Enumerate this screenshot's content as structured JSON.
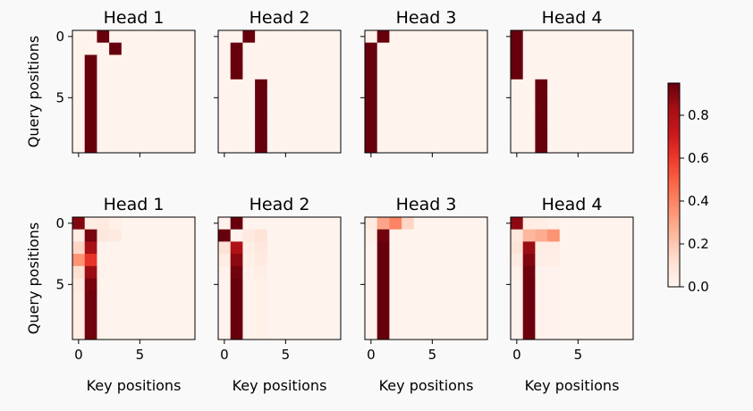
{
  "chart_data": {
    "type": "heatmap",
    "layout": "2x4 grid of attention heatmaps with shared colorbar",
    "xlabel": "Key positions",
    "ylabel": "Query positions",
    "x_ticks": [
      "0",
      "5"
    ],
    "y_ticks": [
      "0",
      "5"
    ],
    "colormap": "Reds",
    "value_range": [
      0,
      0.95
    ],
    "colorbar_ticks": [
      "0.0",
      "0.2",
      "0.4",
      "0.6",
      "0.8"
    ],
    "colorbar_tick_values": [
      0,
      0.2,
      0.4,
      0.6,
      0.8
    ],
    "rows": [
      [
        {
          "title": "Head 1",
          "matrix": [
            [
              0.01,
              0.01,
              0.95,
              0.01,
              0.01,
              0.01,
              0.01,
              0.01,
              0.01,
              0.01
            ],
            [
              0.01,
              0.01,
              0.01,
              0.95,
              0.01,
              0.01,
              0.01,
              0.01,
              0.01,
              0.01
            ],
            [
              0.01,
              0.95,
              0.01,
              0.01,
              0.01,
              0.01,
              0.01,
              0.01,
              0.01,
              0.01
            ],
            [
              0.01,
              0.95,
              0.01,
              0.01,
              0.01,
              0.01,
              0.01,
              0.01,
              0.01,
              0.01
            ],
            [
              0.01,
              0.95,
              0.01,
              0.01,
              0.01,
              0.01,
              0.01,
              0.01,
              0.01,
              0.01
            ],
            [
              0.01,
              0.95,
              0.01,
              0.01,
              0.01,
              0.01,
              0.01,
              0.01,
              0.01,
              0.01
            ],
            [
              0.01,
              0.95,
              0.01,
              0.01,
              0.01,
              0.01,
              0.01,
              0.01,
              0.01,
              0.01
            ],
            [
              0.01,
              0.95,
              0.01,
              0.01,
              0.01,
              0.01,
              0.01,
              0.01,
              0.01,
              0.01
            ],
            [
              0.01,
              0.95,
              0.01,
              0.01,
              0.01,
              0.01,
              0.01,
              0.01,
              0.01,
              0.01
            ],
            [
              0.01,
              0.95,
              0.01,
              0.01,
              0.01,
              0.01,
              0.01,
              0.01,
              0.01,
              0.01
            ]
          ]
        },
        {
          "title": "Head 2",
          "matrix": [
            [
              0.01,
              0.01,
              0.95,
              0.01,
              0.01,
              0.01,
              0.01,
              0.01,
              0.01,
              0.01
            ],
            [
              0.01,
              0.95,
              0.01,
              0.01,
              0.01,
              0.01,
              0.01,
              0.01,
              0.01,
              0.01
            ],
            [
              0.01,
              0.95,
              0.01,
              0.01,
              0.01,
              0.01,
              0.01,
              0.01,
              0.01,
              0.01
            ],
            [
              0.01,
              0.95,
              0.01,
              0.01,
              0.01,
              0.01,
              0.01,
              0.01,
              0.01,
              0.01
            ],
            [
              0.01,
              0.01,
              0.01,
              0.95,
              0.01,
              0.01,
              0.01,
              0.01,
              0.01,
              0.01
            ],
            [
              0.01,
              0.01,
              0.01,
              0.95,
              0.01,
              0.01,
              0.01,
              0.01,
              0.01,
              0.01
            ],
            [
              0.01,
              0.01,
              0.01,
              0.95,
              0.01,
              0.01,
              0.01,
              0.01,
              0.01,
              0.01
            ],
            [
              0.01,
              0.01,
              0.01,
              0.95,
              0.01,
              0.01,
              0.01,
              0.01,
              0.01,
              0.01
            ],
            [
              0.01,
              0.01,
              0.01,
              0.95,
              0.01,
              0.01,
              0.01,
              0.01,
              0.01,
              0.01
            ],
            [
              0.01,
              0.01,
              0.01,
              0.95,
              0.01,
              0.01,
              0.01,
              0.01,
              0.01,
              0.01
            ]
          ]
        },
        {
          "title": "Head 3",
          "matrix": [
            [
              0.01,
              0.95,
              0.01,
              0.01,
              0.01,
              0.01,
              0.01,
              0.01,
              0.01,
              0.01
            ],
            [
              0.95,
              0.01,
              0.01,
              0.01,
              0.01,
              0.01,
              0.01,
              0.01,
              0.01,
              0.01
            ],
            [
              0.95,
              0.01,
              0.01,
              0.01,
              0.01,
              0.01,
              0.01,
              0.01,
              0.01,
              0.01
            ],
            [
              0.95,
              0.01,
              0.01,
              0.01,
              0.01,
              0.01,
              0.01,
              0.01,
              0.01,
              0.01
            ],
            [
              0.95,
              0.01,
              0.01,
              0.01,
              0.01,
              0.01,
              0.01,
              0.01,
              0.01,
              0.01
            ],
            [
              0.95,
              0.01,
              0.01,
              0.01,
              0.01,
              0.01,
              0.01,
              0.01,
              0.01,
              0.01
            ],
            [
              0.95,
              0.01,
              0.01,
              0.01,
              0.01,
              0.01,
              0.01,
              0.01,
              0.01,
              0.01
            ],
            [
              0.95,
              0.01,
              0.01,
              0.01,
              0.01,
              0.01,
              0.01,
              0.01,
              0.01,
              0.01
            ],
            [
              0.95,
              0.01,
              0.01,
              0.01,
              0.01,
              0.01,
              0.01,
              0.01,
              0.01,
              0.01
            ],
            [
              0.95,
              0.01,
              0.01,
              0.01,
              0.01,
              0.01,
              0.01,
              0.01,
              0.01,
              0.01
            ]
          ]
        },
        {
          "title": "Head 4",
          "matrix": [
            [
              0.95,
              0.01,
              0.01,
              0.01,
              0.01,
              0.01,
              0.01,
              0.01,
              0.01,
              0.01
            ],
            [
              0.95,
              0.01,
              0.01,
              0.01,
              0.01,
              0.01,
              0.01,
              0.01,
              0.01,
              0.01
            ],
            [
              0.95,
              0.01,
              0.01,
              0.01,
              0.01,
              0.01,
              0.01,
              0.01,
              0.01,
              0.01
            ],
            [
              0.95,
              0.01,
              0.01,
              0.01,
              0.01,
              0.01,
              0.01,
              0.01,
              0.01,
              0.01
            ],
            [
              0.01,
              0.01,
              0.95,
              0.01,
              0.01,
              0.01,
              0.01,
              0.01,
              0.01,
              0.01
            ],
            [
              0.01,
              0.01,
              0.95,
              0.01,
              0.01,
              0.01,
              0.01,
              0.01,
              0.01,
              0.01
            ],
            [
              0.01,
              0.01,
              0.95,
              0.01,
              0.01,
              0.01,
              0.01,
              0.01,
              0.01,
              0.01
            ],
            [
              0.01,
              0.01,
              0.95,
              0.01,
              0.01,
              0.01,
              0.01,
              0.01,
              0.01,
              0.01
            ],
            [
              0.01,
              0.01,
              0.95,
              0.01,
              0.01,
              0.01,
              0.01,
              0.01,
              0.01,
              0.01
            ],
            [
              0.01,
              0.01,
              0.95,
              0.01,
              0.01,
              0.01,
              0.01,
              0.01,
              0.01,
              0.01
            ]
          ]
        }
      ],
      [
        {
          "title": "Head 1",
          "matrix": [
            [
              0.9,
              0.05,
              0.06,
              0.03,
              0.01,
              0.01,
              0.01,
              0.01,
              0.01,
              0.01
            ],
            [
              0.05,
              0.92,
              0.08,
              0.06,
              0.01,
              0.01,
              0.01,
              0.01,
              0.01,
              0.01
            ],
            [
              0.15,
              0.82,
              0.02,
              0.01,
              0.01,
              0.01,
              0.01,
              0.01,
              0.01,
              0.01
            ],
            [
              0.35,
              0.62,
              0.02,
              0.01,
              0.01,
              0.01,
              0.01,
              0.01,
              0.01,
              0.01
            ],
            [
              0.12,
              0.85,
              0.02,
              0.01,
              0.01,
              0.01,
              0.01,
              0.01,
              0.01,
              0.01
            ],
            [
              0.06,
              0.92,
              0.01,
              0.01,
              0.01,
              0.01,
              0.01,
              0.01,
              0.01,
              0.01
            ],
            [
              0.05,
              0.93,
              0.01,
              0.01,
              0.01,
              0.01,
              0.01,
              0.01,
              0.01,
              0.01
            ],
            [
              0.05,
              0.93,
              0.01,
              0.01,
              0.01,
              0.01,
              0.01,
              0.01,
              0.01,
              0.01
            ],
            [
              0.05,
              0.93,
              0.01,
              0.01,
              0.01,
              0.01,
              0.01,
              0.01,
              0.01,
              0.01
            ],
            [
              0.05,
              0.93,
              0.01,
              0.01,
              0.01,
              0.01,
              0.01,
              0.01,
              0.01,
              0.01
            ]
          ]
        },
        {
          "title": "Head 2",
          "matrix": [
            [
              0.02,
              0.95,
              0.01,
              0.01,
              0.01,
              0.01,
              0.01,
              0.01,
              0.01,
              0.01
            ],
            [
              0.95,
              0.02,
              0.06,
              0.1,
              0.01,
              0.01,
              0.01,
              0.01,
              0.01,
              0.01
            ],
            [
              0.1,
              0.8,
              0.04,
              0.08,
              0.01,
              0.01,
              0.01,
              0.01,
              0.01,
              0.01
            ],
            [
              0.05,
              0.88,
              0.03,
              0.06,
              0.01,
              0.01,
              0.01,
              0.01,
              0.01,
              0.01
            ],
            [
              0.02,
              0.93,
              0.02,
              0.04,
              0.01,
              0.01,
              0.01,
              0.01,
              0.01,
              0.01
            ],
            [
              0.01,
              0.95,
              0.02,
              0.03,
              0.01,
              0.01,
              0.01,
              0.01,
              0.01,
              0.01
            ],
            [
              0.01,
              0.95,
              0.02,
              0.03,
              0.01,
              0.01,
              0.01,
              0.01,
              0.01,
              0.01
            ],
            [
              0.01,
              0.95,
              0.02,
              0.03,
              0.01,
              0.01,
              0.01,
              0.01,
              0.01,
              0.01
            ],
            [
              0.01,
              0.95,
              0.02,
              0.03,
              0.01,
              0.01,
              0.01,
              0.01,
              0.01,
              0.01
            ],
            [
              0.01,
              0.95,
              0.02,
              0.03,
              0.01,
              0.01,
              0.01,
              0.01,
              0.01,
              0.01
            ]
          ]
        },
        {
          "title": "Head 3",
          "matrix": [
            [
              0.06,
              0.3,
              0.4,
              0.15,
              0.01,
              0.01,
              0.01,
              0.01,
              0.01,
              0.01
            ],
            [
              0.03,
              0.93,
              0.02,
              0.01,
              0.01,
              0.01,
              0.01,
              0.01,
              0.01,
              0.01
            ],
            [
              0.01,
              0.95,
              0.01,
              0.01,
              0.01,
              0.01,
              0.01,
              0.01,
              0.01,
              0.01
            ],
            [
              0.01,
              0.95,
              0.01,
              0.01,
              0.01,
              0.01,
              0.01,
              0.01,
              0.01,
              0.01
            ],
            [
              0.01,
              0.95,
              0.01,
              0.01,
              0.01,
              0.01,
              0.01,
              0.01,
              0.01,
              0.01
            ],
            [
              0.01,
              0.95,
              0.01,
              0.01,
              0.01,
              0.01,
              0.01,
              0.01,
              0.01,
              0.01
            ],
            [
              0.01,
              0.95,
              0.01,
              0.01,
              0.01,
              0.01,
              0.01,
              0.01,
              0.01,
              0.01
            ],
            [
              0.01,
              0.95,
              0.01,
              0.01,
              0.01,
              0.01,
              0.01,
              0.01,
              0.01,
              0.01
            ],
            [
              0.01,
              0.95,
              0.01,
              0.01,
              0.01,
              0.01,
              0.01,
              0.01,
              0.01,
              0.01
            ],
            [
              0.01,
              0.95,
              0.01,
              0.01,
              0.01,
              0.01,
              0.01,
              0.01,
              0.01,
              0.01
            ]
          ]
        },
        {
          "title": "Head 4",
          "matrix": [
            [
              0.88,
              0.05,
              0.04,
              0.03,
              0.01,
              0.01,
              0.01,
              0.01,
              0.01,
              0.01
            ],
            [
              0.08,
              0.25,
              0.28,
              0.35,
              0.01,
              0.01,
              0.01,
              0.01,
              0.01,
              0.01
            ],
            [
              0.1,
              0.85,
              0.05,
              0.05,
              0.01,
              0.01,
              0.01,
              0.01,
              0.01,
              0.01
            ],
            [
              0.06,
              0.9,
              0.04,
              0.04,
              0.01,
              0.01,
              0.01,
              0.01,
              0.01,
              0.01
            ],
            [
              0.03,
              0.93,
              0.02,
              0.02,
              0.01,
              0.01,
              0.01,
              0.01,
              0.01,
              0.01
            ],
            [
              0.02,
              0.94,
              0.02,
              0.02,
              0.01,
              0.01,
              0.01,
              0.01,
              0.01,
              0.01
            ],
            [
              0.02,
              0.94,
              0.02,
              0.02,
              0.01,
              0.01,
              0.01,
              0.01,
              0.01,
              0.01
            ],
            [
              0.02,
              0.94,
              0.02,
              0.02,
              0.01,
              0.01,
              0.01,
              0.01,
              0.01,
              0.01
            ],
            [
              0.02,
              0.94,
              0.02,
              0.02,
              0.01,
              0.01,
              0.01,
              0.01,
              0.01,
              0.01
            ],
            [
              0.02,
              0.94,
              0.02,
              0.02,
              0.01,
              0.01,
              0.01,
              0.01,
              0.01,
              0.01
            ]
          ]
        }
      ]
    ]
  }
}
